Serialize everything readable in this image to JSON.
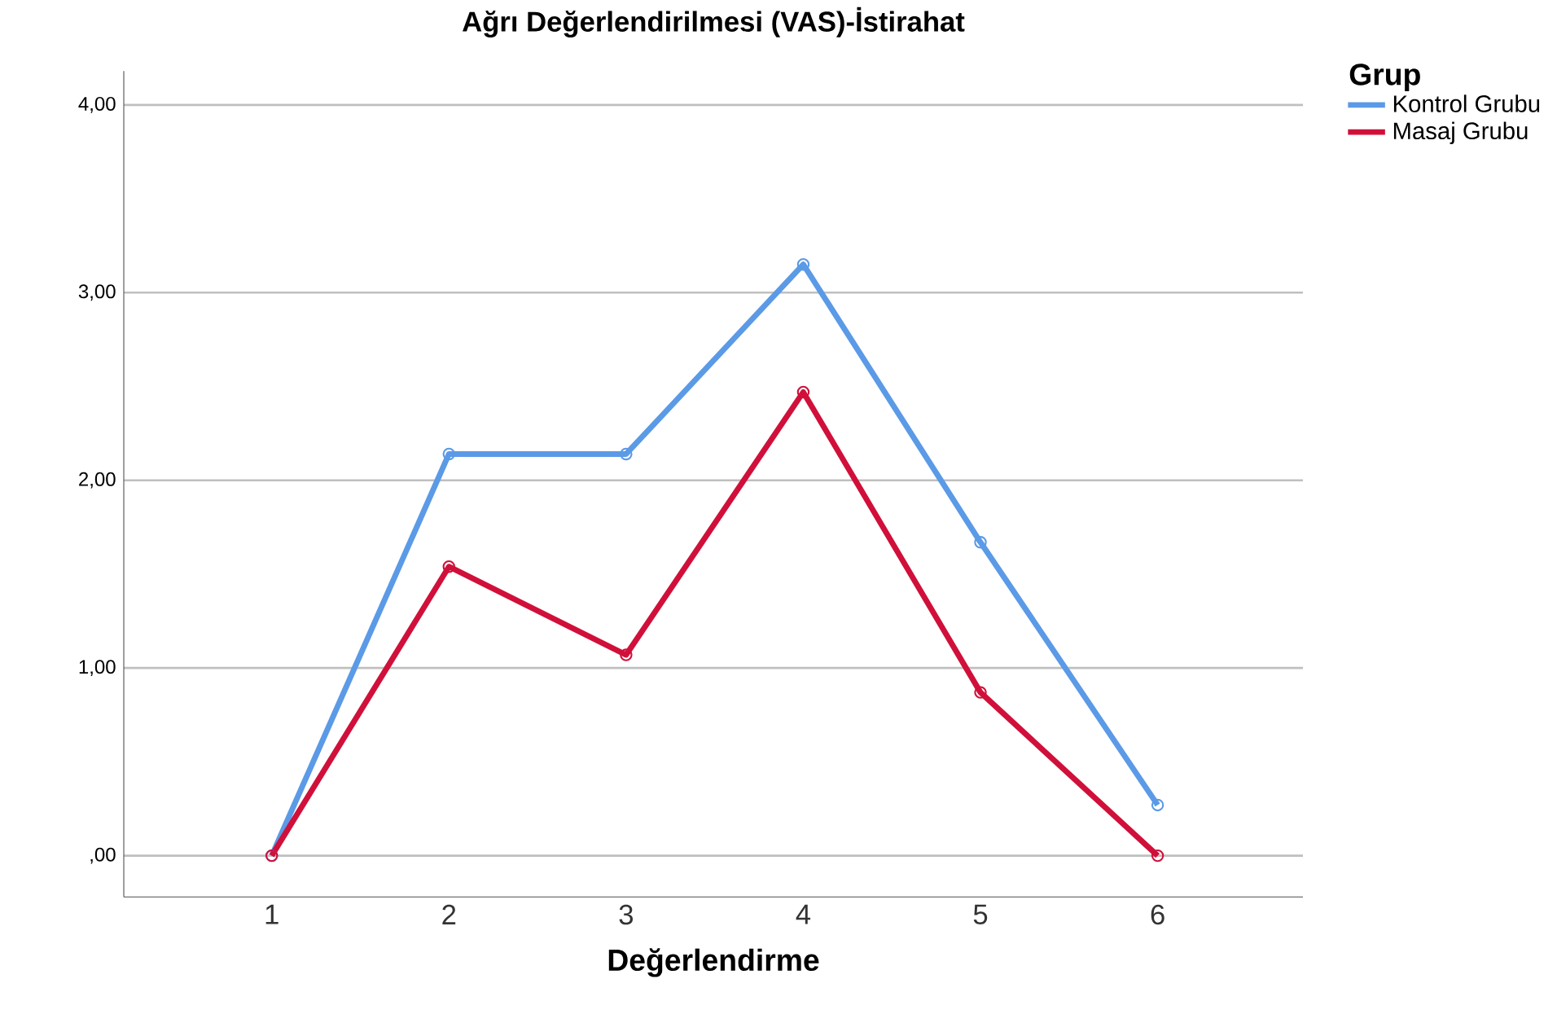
{
  "chart_data": {
    "type": "line",
    "title": "Ağrı Değerlendirilmesi (VAS)-İstirahat",
    "xlabel": "Değerlendirme",
    "legend_title": "Grup",
    "categories": [
      "1",
      "2",
      "3",
      "4",
      "5",
      "6"
    ],
    "series": [
      {
        "name": "Kontrol Grubu",
        "color": "#5b9ae6",
        "values": [
          0,
          2.14,
          2.14,
          3.15,
          1.67,
          0.27
        ]
      },
      {
        "name": "Masaj Grubu",
        "color": "#d0103a",
        "values": [
          0,
          1.54,
          1.07,
          2.47,
          0.87,
          0
        ]
      }
    ],
    "ylim": [
      -0.22,
      4.18
    ],
    "yticks": [
      {
        "value": 0,
        "label": ",00"
      },
      {
        "value": 1,
        "label": "1,00"
      },
      {
        "value": 2,
        "label": "2,00"
      },
      {
        "value": 3,
        "label": "3,00"
      },
      {
        "value": 4,
        "label": "4,00"
      }
    ],
    "grid": "y",
    "legend": "top right",
    "marker": "circle",
    "line_style": "solid"
  }
}
